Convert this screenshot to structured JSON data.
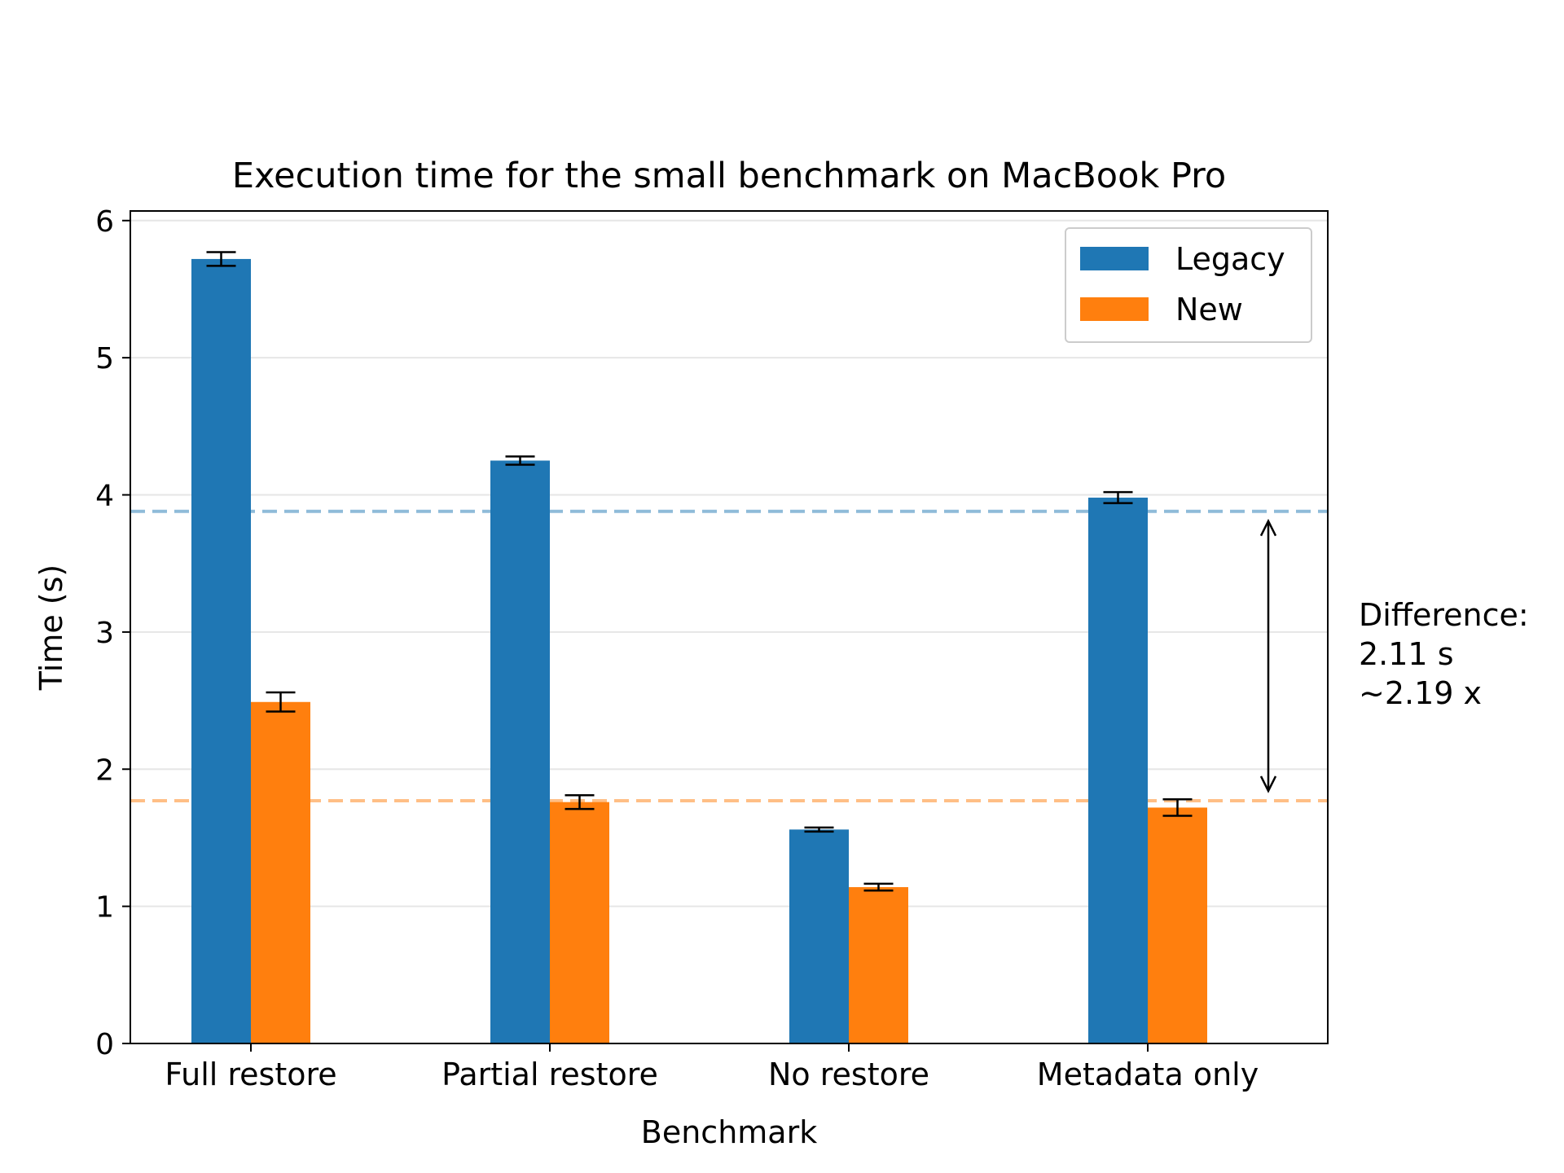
{
  "chart_data": {
    "type": "bar",
    "title": "Execution time for the small benchmark on MacBook Pro",
    "xlabel": "Benchmark",
    "ylabel": "Time (s)",
    "categories": [
      "Full restore",
      "Partial restore",
      "No restore",
      "Metadata only"
    ],
    "series": [
      {
        "name": "Legacy",
        "color": "#1f77b4",
        "values": [
          5.72,
          4.25,
          1.56,
          3.98
        ],
        "errors": [
          0.05,
          0.03,
          0.015,
          0.04
        ]
      },
      {
        "name": "New",
        "color": "#ff7f0e",
        "values": [
          2.49,
          1.76,
          1.14,
          1.72
        ],
        "errors": [
          0.07,
          0.05,
          0.025,
          0.06
        ]
      }
    ],
    "ylim": [
      0,
      6.07
    ],
    "yticks": [
      "0",
      "1",
      "2",
      "3",
      "4",
      "5",
      "6"
    ],
    "grid": "horizontal",
    "legend": "top-right",
    "reference_lines": [
      {
        "series": "Legacy",
        "value": 3.88,
        "color": "#8fbbd9",
        "style": "dashed"
      },
      {
        "series": "New",
        "value": 1.77,
        "color": "#ffbf86",
        "style": "dashed"
      }
    ],
    "annotation": {
      "lines": [
        "Difference:",
        "2.11 s",
        "~2.19 x"
      ],
      "arrow_from": 3.88,
      "arrow_to": 1.77
    }
  }
}
